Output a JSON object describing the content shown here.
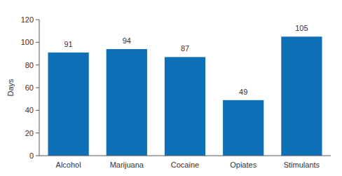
{
  "chart_data": {
    "type": "bar",
    "y_label": "Days",
    "categories": [
      "Alcohol",
      "Marijuana",
      "Cocaine",
      "Opiates",
      "Stimulants"
    ],
    "values": [
      91,
      94,
      87,
      49,
      105
    ],
    "color": "#0f6fb7",
    "ylim": [
      0,
      120
    ],
    "yticks": [
      0,
      20,
      40,
      60,
      80,
      100,
      120
    ],
    "grid": false,
    "data_labels": true
  }
}
